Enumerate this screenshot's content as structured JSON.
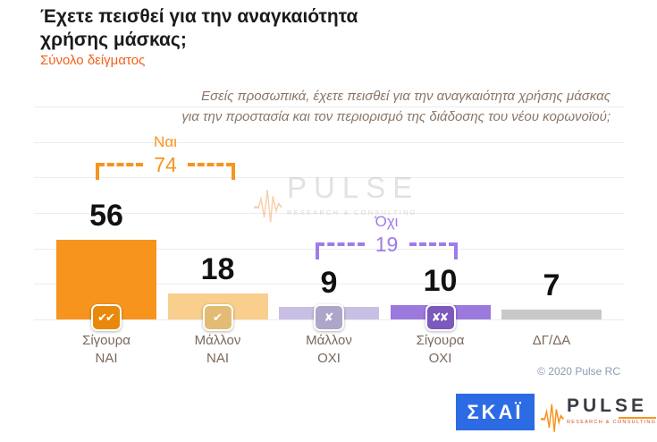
{
  "header": {
    "title": "Έχετε πεισθεί για την αναγκαιότητα\nχρήσης μάσκας;",
    "subtitle": "Σύνολο δείγματος",
    "question": "Εσείς προσωπικά, έχετε πεισθεί για την αναγκαιότητα χρήσης μάσκας\nγια την προστασία και τον περιορισμό της διάδοσης του νέου κορωνοϊού;"
  },
  "chart_data": {
    "type": "bar",
    "title": "Έχετε πεισθεί για την αναγκαιότητα χρήσης μάσκας;",
    "subtitle": "Σύνολο δείγματος",
    "categories": [
      "Σίγουρα\nΝΑΙ",
      "Μάλλον\nΝΑΙ",
      "Μάλλον\nΟΧΙ",
      "Σίγουρα\nΟΧΙ",
      "ΔΓ/ΔΑ"
    ],
    "values": [
      56,
      18,
      9,
      10,
      7
    ],
    "bar_colors": [
      "#F7941E",
      "#FACE8C",
      "#C9BFE5",
      "#9B79DE",
      "#C8C8C8"
    ],
    "badges": [
      {
        "name": "double-check-icon",
        "icon": "✔✔",
        "color": "#E8890B"
      },
      {
        "name": "single-check-icon",
        "icon": "✔",
        "color": "#E2BB75"
      },
      {
        "name": "single-x-icon",
        "icon": "✘",
        "color": "#AFA5C8"
      },
      {
        "name": "double-x-icon",
        "icon": "✘✘",
        "color": "#7B59BD"
      },
      null
    ],
    "brackets": [
      {
        "label": "Ναι",
        "value": "74",
        "color": "#F7941E",
        "spans_categories": [
          "Σίγουρα ΝΑΙ",
          "Μάλλον ΝΑΙ"
        ]
      },
      {
        "label": "Όχι",
        "value": "19",
        "color": "#9E7CE9",
        "spans_categories": [
          "Μάλλον ΟΧΙ",
          "Σίγουρα ΟΧΙ"
        ]
      }
    ],
    "xlabel": "",
    "ylabel": "",
    "ylim": [
      0,
      150
    ],
    "gridline_step": 25,
    "grid": true,
    "legend": false
  },
  "watermark": {
    "brand": "PULSE",
    "tagline": "RESEARCH & CONSULTING"
  },
  "footer": {
    "copyright": "© 2020 Pulse RC",
    "skai": "ΣΚΑΪ",
    "pulse_brand": "PULSE",
    "pulse_tagline": "RESEARCH & CONSULTING"
  }
}
